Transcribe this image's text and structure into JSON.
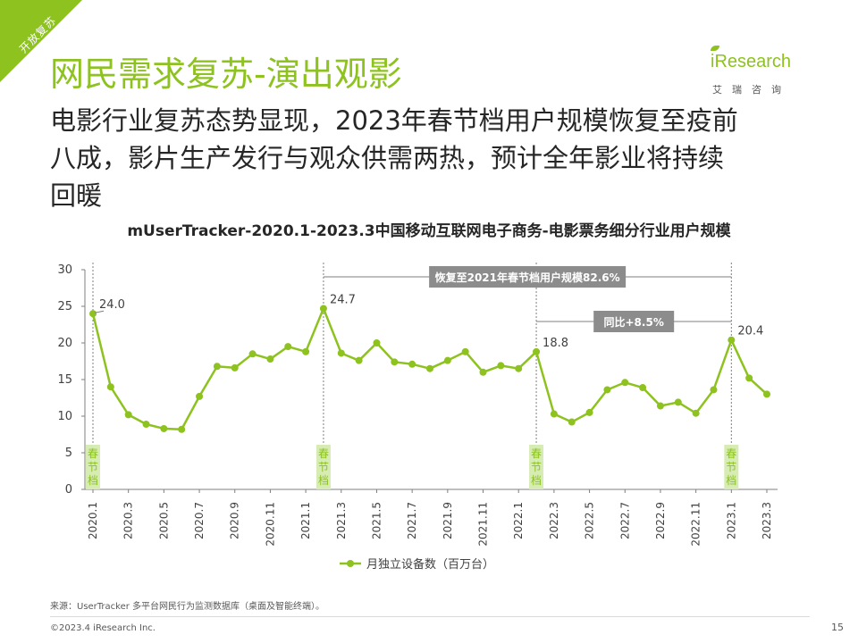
{
  "corner_tag": "开放复苏",
  "page_title": "网民需求复苏-演出观影",
  "logo": {
    "word": "iResearch",
    "sub": "艾瑞咨询"
  },
  "subtitle_lines": [
    "电影行业复苏态势显现，2023年春节档用户规模恢复至疫前",
    "八成，影片生产发行与观众供需两热，预计全年影业将持续",
    "回暖"
  ],
  "source": "来源：UserTracker 多平台网民行为监测数据库（桌面及智能终端）。",
  "copyright": "©2023.4 iResearch Inc.",
  "page_number": "15",
  "colors": {
    "accent": "#8dc21f",
    "festival_bg": "#d7ecb4",
    "callout_bg": "#8c8c8c",
    "annotation_line": "#7f7f7f"
  },
  "chart_data": {
    "type": "line",
    "title": "mUserTracker-2020.1-2023.3中国移动互联网电子商务-电影票务细分行业用户规模",
    "x": [
      "2020.1",
      "2020.2",
      "2020.3",
      "2020.4",
      "2020.5",
      "2020.6",
      "2020.7",
      "2020.8",
      "2020.9",
      "2020.10",
      "2020.11",
      "2020.12",
      "2021.1",
      "2021.2",
      "2021.3",
      "2021.4",
      "2021.5",
      "2021.6",
      "2021.7",
      "2021.8",
      "2021.9",
      "2021.10",
      "2021.11",
      "2021.12",
      "2022.1",
      "2022.2",
      "2022.3",
      "2022.4",
      "2022.5",
      "2022.6",
      "2022.7",
      "2022.8",
      "2022.9",
      "2022.10",
      "2022.11",
      "2022.12",
      "2023.1",
      "2023.2",
      "2023.3"
    ],
    "x_tick_labels": [
      "2020.1",
      "2020.3",
      "2020.5",
      "2020.7",
      "2020.9",
      "2020.11",
      "2021.1",
      "2021.3",
      "2021.5",
      "2021.7",
      "2021.9",
      "2021.11",
      "2022.1",
      "2022.3",
      "2022.5",
      "2022.7",
      "2022.9",
      "2022.11",
      "2023.1",
      "2023.3"
    ],
    "series": [
      {
        "name": "月独立设备数（百万台）",
        "values": [
          24.0,
          14.0,
          10.2,
          8.9,
          8.3,
          8.2,
          12.7,
          16.8,
          16.6,
          18.5,
          17.8,
          19.5,
          18.8,
          24.7,
          18.6,
          17.6,
          20.0,
          17.4,
          17.1,
          16.5,
          17.6,
          18.8,
          16.0,
          16.9,
          16.5,
          18.8,
          10.3,
          9.2,
          10.5,
          13.6,
          14.6,
          13.9,
          11.4,
          11.9,
          10.4,
          13.6,
          20.4,
          15.2,
          13.0
        ]
      }
    ],
    "ylim": [
      0,
      30
    ],
    "yticks": [
      0,
      5,
      10,
      15,
      20,
      25,
      30
    ],
    "data_labels": [
      {
        "x": "2020.1",
        "text": "24.0"
      },
      {
        "x": "2021.2",
        "text": "24.7"
      },
      {
        "x": "2022.2",
        "text": "18.8"
      },
      {
        "x": "2023.1",
        "text": "20.4"
      }
    ],
    "festival_markers": [
      {
        "x": "2020.1",
        "text": "春节档"
      },
      {
        "x": "2021.2",
        "text": "春节档"
      },
      {
        "x": "2022.2",
        "text": "春节档"
      },
      {
        "x": "2023.1",
        "text": "春节档"
      }
    ],
    "callouts": [
      {
        "from": "2021.2",
        "to": "2023.1",
        "text": "恢复至2021年春节档用户规模82.6%"
      },
      {
        "from": "2022.2",
        "to": "2023.1",
        "text": "同比+8.5%"
      }
    ],
    "legend": "bottom",
    "grid": false
  }
}
